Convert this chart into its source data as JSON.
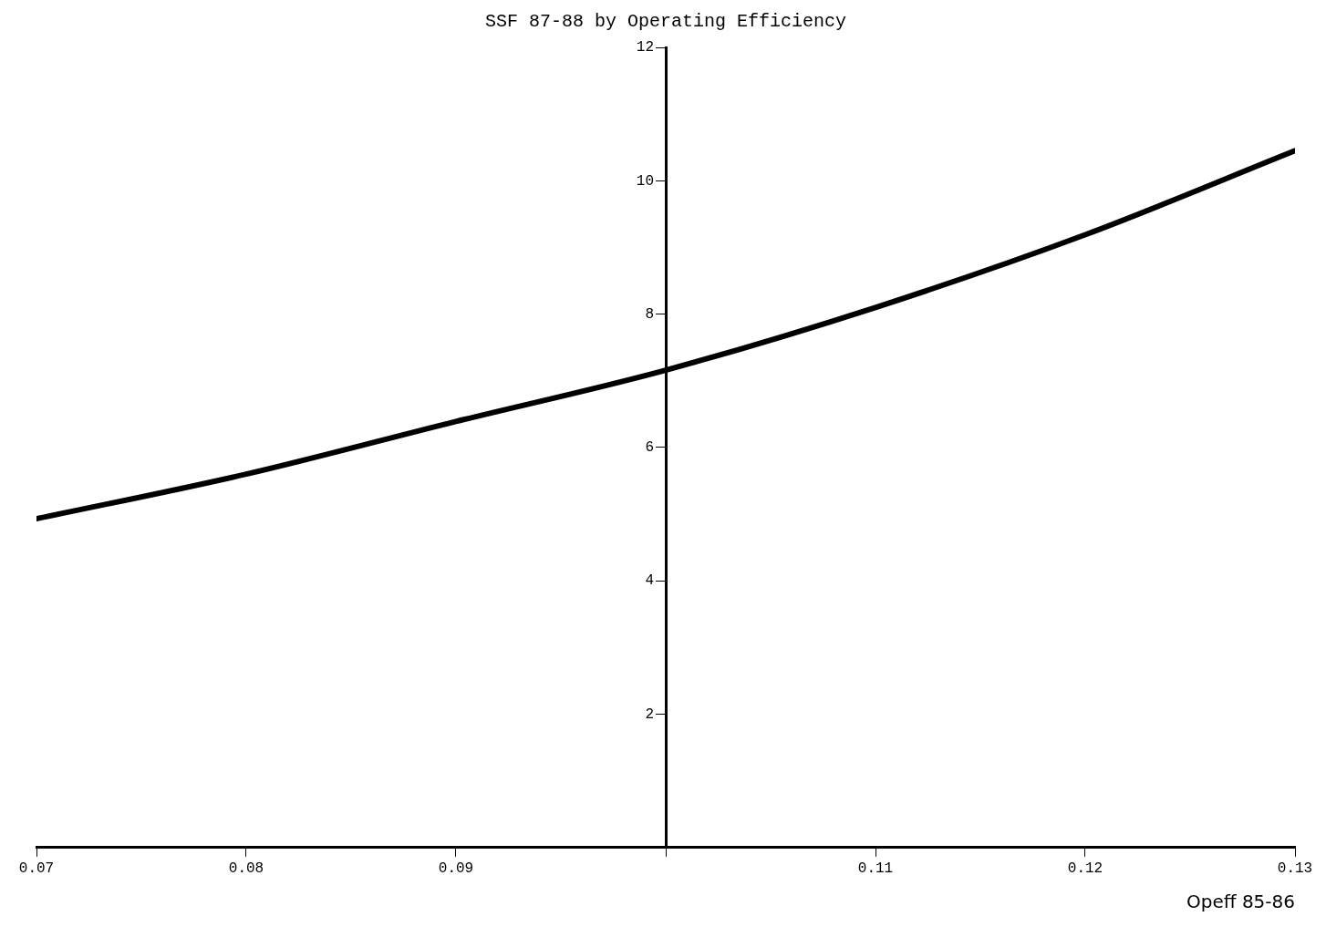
{
  "chart_data": {
    "type": "line",
    "title": "SSF 87-88 by Operating Efficiency",
    "xlabel": "Opeff 85-86",
    "x": [
      0.07,
      0.08,
      0.09,
      0.1,
      0.11,
      0.12,
      0.13
    ],
    "series": [
      {
        "color": "#000000",
        "values": [
          4.93,
          5.6,
          6.39,
          7.16,
          8.1,
          9.19,
          10.45
        ]
      }
    ],
    "xlim": [
      0.07,
      0.13
    ],
    "xticks": [
      0.07,
      0.08,
      0.09,
      {
        "value": 0.1,
        "label": null
      },
      0.11,
      0.12,
      0.13
    ],
    "ylim": [
      0,
      12
    ],
    "yticks": [
      2,
      4,
      6,
      8,
      10,
      12
    ],
    "grid": false,
    "legend": false,
    "marker": "none",
    "line_style": "solid"
  }
}
